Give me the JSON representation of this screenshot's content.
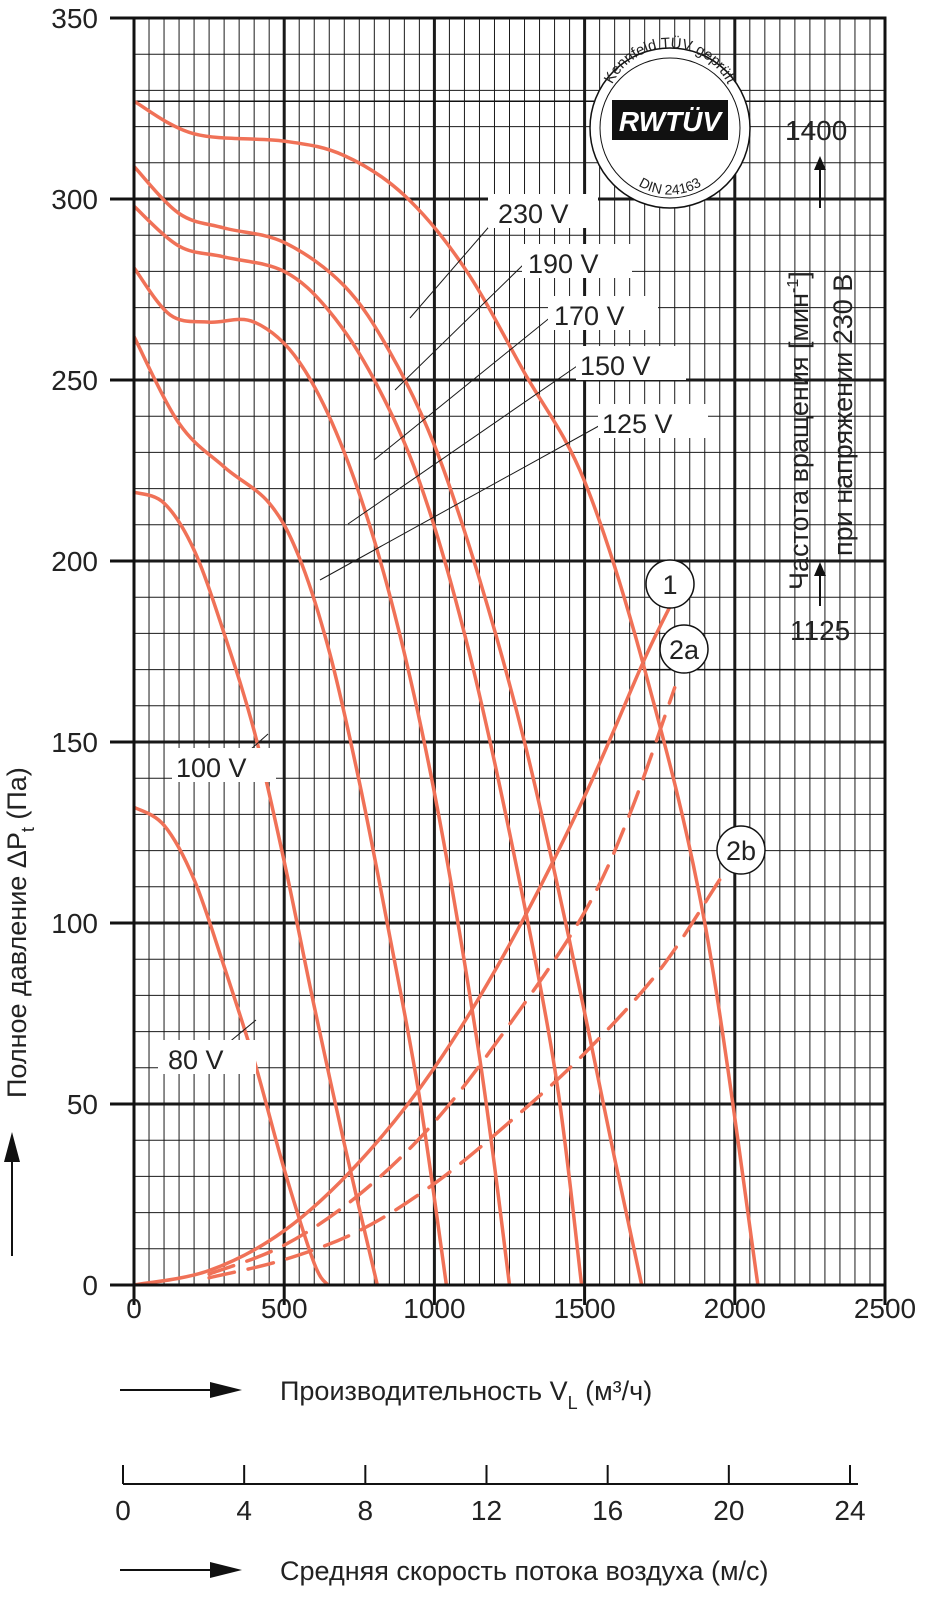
{
  "chart_data": {
    "type": "line",
    "xlabel": "Производительность V",
    "xlabel_sub": "L",
    "xlabel_unit": "(м³/ч)",
    "ylabel": "Полное давление ΔP",
    "ylabel_sub": "t",
    "ylabel_unit": "(Па)",
    "x_ticks": [
      "0",
      "500",
      "1000",
      "1500",
      "2000",
      "2500"
    ],
    "y_ticks": [
      "0",
      "50",
      "100",
      "150",
      "200",
      "250",
      "300",
      "350"
    ],
    "xlim": [
      0,
      2500
    ],
    "ylim": [
      0,
      350
    ],
    "grid": true,
    "line_color": "#f07157",
    "series": [
      {
        "name": "230 V",
        "x": [
          0,
          200,
          500,
          700,
          900,
          1100,
          1300,
          1500,
          1700,
          1900,
          2077
        ],
        "y": [
          327,
          318,
          316,
          312,
          301,
          281,
          252,
          222,
          170,
          100,
          0
        ]
      },
      {
        "name": "190 V",
        "x": [
          0,
          150,
          300,
          500,
          700,
          850,
          1000,
          1150,
          1300,
          1450,
          1600,
          1690
        ],
        "y": [
          309,
          296,
          292,
          288,
          276,
          258,
          232,
          195,
          150,
          95,
          35,
          0
        ]
      },
      {
        "name": "170 V",
        "x": [
          0,
          150,
          300,
          500,
          650,
          800,
          950,
          1100,
          1250,
          1400,
          1490
        ],
        "y": [
          298,
          287,
          284,
          280,
          269,
          250,
          222,
          180,
          125,
          60,
          0
        ]
      },
      {
        "name": "150 V",
        "x": [
          0,
          120,
          250,
          400,
          550,
          700,
          850,
          1000,
          1150,
          1250
        ],
        "y": [
          281,
          268,
          266,
          266,
          255,
          230,
          191,
          136,
          63,
          0
        ]
      },
      {
        "name": "125 V",
        "x": [
          0,
          150,
          300,
          450,
          550,
          650,
          750,
          850,
          950,
          1040
        ],
        "y": [
          262,
          238,
          226,
          216,
          201,
          175,
          139,
          97,
          52,
          0
        ]
      },
      {
        "name": "100 V",
        "x": [
          0,
          100,
          200,
          300,
          400,
          500,
          600,
          700,
          810
        ],
        "y": [
          219,
          216,
          203,
          180,
          153,
          117,
          77,
          39,
          0
        ]
      },
      {
        "name": "80 V",
        "x": [
          0,
          100,
          200,
          300,
          400,
          500,
          600,
          645
        ],
        "y": [
          132,
          127,
          112,
          88,
          62,
          32,
          6,
          0
        ]
      },
      {
        "name": "1",
        "x": [
          0,
          250,
          500,
          750,
          1000,
          1250,
          1500,
          1700,
          1800
        ],
        "y": [
          0,
          4,
          15,
          34,
          60,
          94,
          135,
          173,
          190
        ]
      },
      {
        "name": "2a",
        "x": [
          250,
          500,
          750,
          1000,
          1250,
          1500,
          1650,
          1800
        ],
        "y": [
          3,
          11,
          25,
          45,
          72,
          103,
          130,
          165
        ],
        "dashed": true
      },
      {
        "name": "2b",
        "x": [
          250,
          500,
          750,
          1000,
          1250,
          1500,
          1750,
          1950
        ],
        "y": [
          2,
          7,
          15,
          28,
          45,
          64,
          87,
          112
        ],
        "dashed": true
      }
    ],
    "curve_labels": [
      "230 V",
      "190 V",
      "170 V",
      "150 V",
      "125 V",
      "100 V",
      "80 V"
    ],
    "circle_labels": [
      "1",
      "2a",
      "2b"
    ],
    "speed_axis": {
      "ticks": [
        "0",
        "4",
        "8",
        "12",
        "16",
        "20",
        "24"
      ],
      "label": "Средняя скорость потока воздуха (м/с)"
    },
    "rpm_axis": {
      "top_value": "1400",
      "bottom_value": "1125",
      "label_line1": "Частота вращения [мин",
      "label_sup": "-1",
      "label_line1_end": "]",
      "label_line2": "при напряжении 230 В"
    },
    "stamp": {
      "arc_text": "Kennfeld TÜV geprüft",
      "logo": "RWTÜV",
      "bottom_text": "DIN 24163"
    }
  }
}
